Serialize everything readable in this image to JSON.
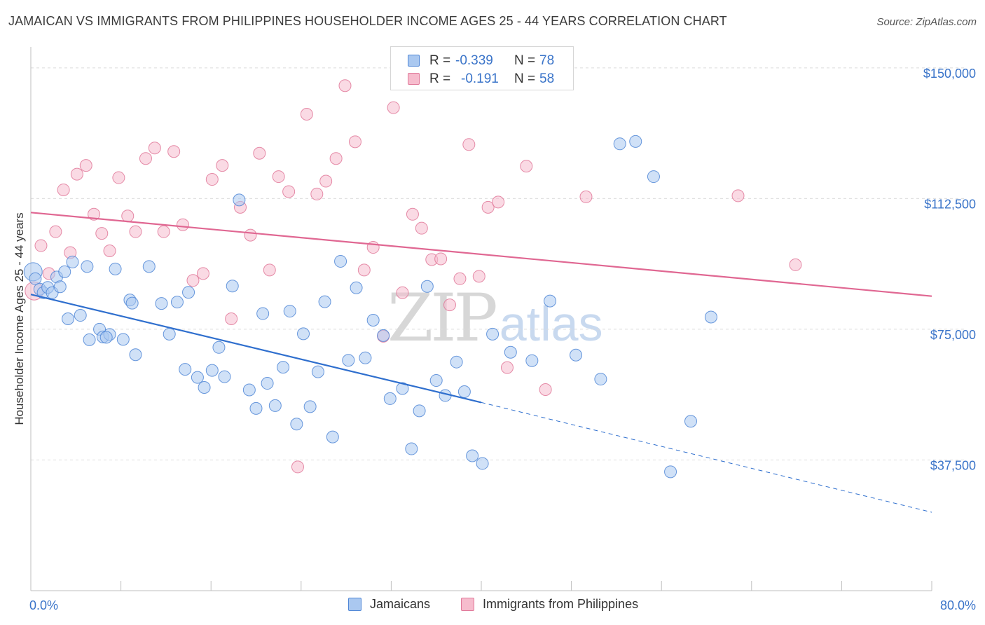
{
  "header": {
    "title": "JAMAICAN VS IMMIGRANTS FROM PHILIPPINES HOUSEHOLDER INCOME AGES 25 - 44 YEARS CORRELATION CHART",
    "source": "Source: ZipAtlas.com"
  },
  "watermark": {
    "zip": "ZIP",
    "atlas": "atlas"
  },
  "legend": {
    "rows": [
      {
        "r_label": "R =",
        "r_value": "-0.339",
        "n_label": "N =",
        "n_value": "78"
      },
      {
        "r_label": "R =",
        "r_value": "-0.191",
        "n_label": "N =",
        "n_value": "58"
      }
    ],
    "bottom": [
      "Jamaicans",
      "Immigrants from Philippines"
    ]
  },
  "colors": {
    "series1_fill": "#aac8f0",
    "series1_stroke": "#4f86d6",
    "series1_line": "#2f6fce",
    "series2_fill": "#f6bccd",
    "series2_stroke": "#e07899",
    "series2_line": "#e06792",
    "tick_label": "#3a74c9",
    "grid": "#dcdcdc"
  },
  "chart_data": {
    "type": "scatter",
    "title": "JAMAICAN VS IMMIGRANTS FROM PHILIPPINES HOUSEHOLDER INCOME AGES 25 - 44 YEARS CORRELATION CHART",
    "xlabel": "",
    "ylabel": "Householder Income Ages 25 - 44 years",
    "xlim": [
      0,
      80
    ],
    "ylim": [
      0,
      155000
    ],
    "x_tick_labels": [
      "0.0%",
      "80.0%"
    ],
    "x_tick_values": [
      0,
      80
    ],
    "x_minor_ticks": [
      8,
      16,
      24,
      32,
      40,
      48,
      56,
      64,
      72
    ],
    "y_ticks": [
      37500,
      75000,
      112500,
      150000
    ],
    "y_tick_labels": [
      "$37,500",
      "$75,000",
      "$112,500",
      "$150,000"
    ],
    "grid": true,
    "legend_position": "top-center",
    "series": [
      {
        "name": "Jamaicans",
        "r": -0.339,
        "n": 78,
        "trend": {
          "x0": 0,
          "y0": 85000,
          "x1": 40,
          "y1": 54000,
          "dash_to_x": 80,
          "dash_to_y": 22500
        },
        "points": [
          [
            0.2,
            91500
          ],
          [
            0.4,
            89500
          ],
          [
            0.8,
            86500
          ],
          [
            1.1,
            85500
          ],
          [
            1.5,
            87000
          ],
          [
            1.9,
            85500
          ],
          [
            2.3,
            90000
          ],
          [
            3.0,
            91500
          ],
          [
            3.3,
            78000
          ],
          [
            2.6,
            87200
          ],
          [
            3.7,
            94300
          ],
          [
            4.4,
            79000
          ],
          [
            5.2,
            72000
          ],
          [
            5.0,
            93000
          ],
          [
            6.1,
            75000
          ],
          [
            6.4,
            72800
          ],
          [
            7.0,
            73500
          ],
          [
            6.7,
            72700
          ],
          [
            7.5,
            92300
          ],
          [
            8.2,
            72100
          ],
          [
            8.8,
            83400
          ],
          [
            9.0,
            82500
          ],
          [
            9.3,
            67700
          ],
          [
            10.5,
            93000
          ],
          [
            11.6,
            82400
          ],
          [
            12.3,
            73600
          ],
          [
            13.0,
            82800
          ],
          [
            13.7,
            63500
          ],
          [
            14.0,
            85600
          ],
          [
            14.8,
            61200
          ],
          [
            15.4,
            58300
          ],
          [
            16.1,
            63200
          ],
          [
            16.7,
            69800
          ],
          [
            17.2,
            61400
          ],
          [
            17.9,
            87400
          ],
          [
            18.5,
            112100
          ],
          [
            19.4,
            57600
          ],
          [
            20.0,
            52300
          ],
          [
            20.6,
            79500
          ],
          [
            21.0,
            59500
          ],
          [
            21.7,
            53100
          ],
          [
            22.4,
            64100
          ],
          [
            23.0,
            80200
          ],
          [
            23.6,
            47800
          ],
          [
            24.2,
            73700
          ],
          [
            24.8,
            52800
          ],
          [
            25.5,
            62800
          ],
          [
            26.1,
            82900
          ],
          [
            26.8,
            44100
          ],
          [
            27.5,
            94500
          ],
          [
            28.2,
            66100
          ],
          [
            28.9,
            86900
          ],
          [
            29.7,
            66800
          ],
          [
            30.4,
            77600
          ],
          [
            31.3,
            73200
          ],
          [
            31.9,
            55100
          ],
          [
            33.0,
            58000
          ],
          [
            33.8,
            40700
          ],
          [
            34.5,
            51600
          ],
          [
            35.2,
            87300
          ],
          [
            36.0,
            60300
          ],
          [
            36.8,
            56000
          ],
          [
            37.8,
            65600
          ],
          [
            38.5,
            57100
          ],
          [
            39.2,
            38700
          ],
          [
            40.1,
            36500
          ],
          [
            41.0,
            73600
          ],
          [
            42.6,
            68400
          ],
          [
            44.5,
            66000
          ],
          [
            46.1,
            83100
          ],
          [
            48.4,
            67600
          ],
          [
            50.6,
            60700
          ],
          [
            52.3,
            128200
          ],
          [
            53.7,
            128900
          ],
          [
            55.3,
            118800
          ],
          [
            56.8,
            34100
          ],
          [
            58.6,
            48600
          ],
          [
            60.4,
            78500
          ]
        ]
      },
      {
        "name": "Immigrants from Philippines",
        "r": -0.191,
        "n": 58,
        "trend": {
          "x0": 0,
          "y0": 108500,
          "x1": 80,
          "y1": 84500
        },
        "points": [
          [
            0.3,
            86000
          ],
          [
            0.9,
            99000
          ],
          [
            1.6,
            91000
          ],
          [
            2.2,
            103000
          ],
          [
            2.9,
            115000
          ],
          [
            3.5,
            97000
          ],
          [
            4.1,
            119500
          ],
          [
            4.9,
            122000
          ],
          [
            5.6,
            108000
          ],
          [
            6.3,
            102500
          ],
          [
            7.0,
            97500
          ],
          [
            7.8,
            118500
          ],
          [
            8.6,
            107500
          ],
          [
            9.3,
            103000
          ],
          [
            10.2,
            124000
          ],
          [
            11.0,
            127000
          ],
          [
            11.8,
            103000
          ],
          [
            12.7,
            126000
          ],
          [
            13.5,
            105000
          ],
          [
            14.4,
            89000
          ],
          [
            15.3,
            91000
          ],
          [
            16.1,
            118000
          ],
          [
            17.0,
            122000
          ],
          [
            17.8,
            78000
          ],
          [
            18.6,
            110000
          ],
          [
            19.5,
            102000
          ],
          [
            20.3,
            125500
          ],
          [
            21.2,
            92000
          ],
          [
            22.0,
            118800
          ],
          [
            22.9,
            114500
          ],
          [
            23.7,
            35500
          ],
          [
            24.5,
            136700
          ],
          [
            25.4,
            113800
          ],
          [
            26.2,
            117500
          ],
          [
            27.1,
            124000
          ],
          [
            27.9,
            144900
          ],
          [
            28.8,
            128800
          ],
          [
            29.6,
            92000
          ],
          [
            30.4,
            98500
          ],
          [
            31.3,
            73000
          ],
          [
            32.2,
            138600
          ],
          [
            33.0,
            85500
          ],
          [
            33.9,
            108000
          ],
          [
            34.7,
            104000
          ],
          [
            35.6,
            95000
          ],
          [
            36.4,
            95200
          ],
          [
            37.2,
            82000
          ],
          [
            38.1,
            89500
          ],
          [
            38.9,
            128000
          ],
          [
            39.8,
            90200
          ],
          [
            40.6,
            110000
          ],
          [
            41.5,
            111500
          ],
          [
            42.3,
            64000
          ],
          [
            44.0,
            121800
          ],
          [
            45.7,
            57700
          ],
          [
            49.3,
            113000
          ],
          [
            62.8,
            113300
          ],
          [
            67.9,
            93500
          ]
        ]
      }
    ]
  }
}
